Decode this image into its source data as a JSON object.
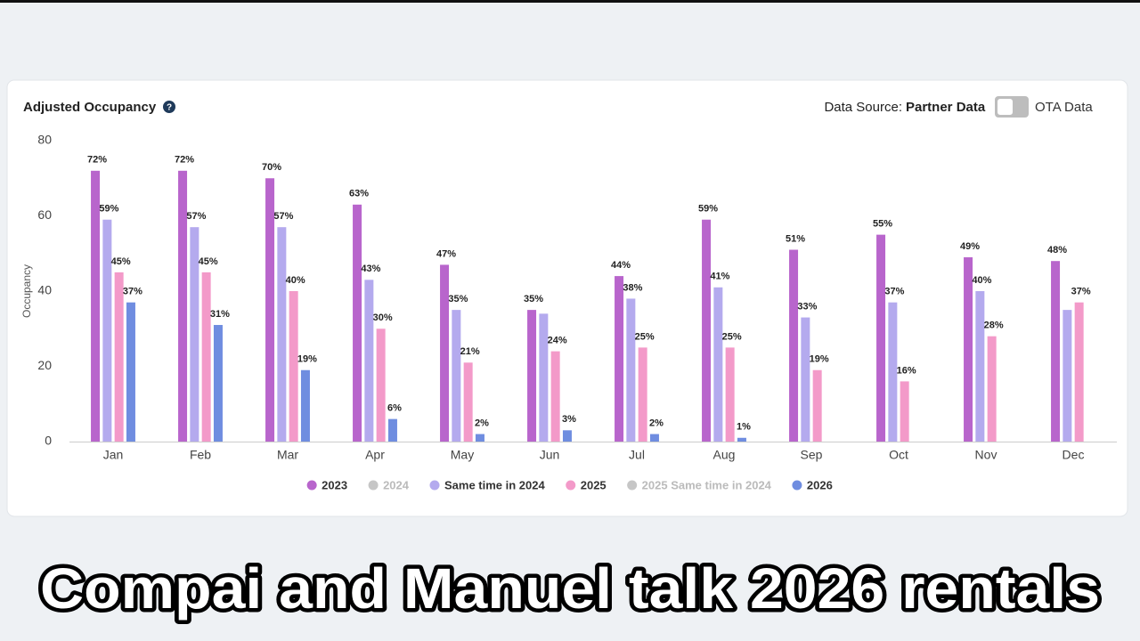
{
  "chart_data": {
    "type": "bar",
    "title": "Adjusted Occupancy",
    "y_label": "Occupancy",
    "categories": [
      "Jan",
      "Feb",
      "Mar",
      "Apr",
      "May",
      "Jun",
      "Jul",
      "Aug",
      "Sep",
      "Oct",
      "Nov",
      "Dec"
    ],
    "ylim": [
      0,
      80
    ],
    "yticks": [
      0,
      20,
      40,
      60,
      80
    ],
    "grid": false,
    "legend": "bottom",
    "series": [
      {
        "name": "2023",
        "color": "#b865cc",
        "hidden": false,
        "values": [
          72,
          72,
          70,
          63,
          47,
          35,
          44,
          59,
          51,
          55,
          49,
          48
        ],
        "value_labels": [
          "72%",
          "72%",
          "70%",
          "63%",
          "47%",
          "35%",
          "44%",
          "59%",
          "51%",
          "55%",
          "49%",
          "48%"
        ]
      },
      {
        "name": "2024",
        "color": "#c6c6c6",
        "hidden": true,
        "values": [
          null,
          null,
          null,
          null,
          null,
          null,
          null,
          null,
          null,
          null,
          null,
          null
        ]
      },
      {
        "name": "Same time in 2024",
        "color": "#b4aaee",
        "hidden": false,
        "values": [
          59,
          57,
          57,
          43,
          35,
          34,
          38,
          41,
          33,
          37,
          40,
          35
        ],
        "value_labels": [
          "59%",
          "57%",
          "57%",
          "43%",
          "35%",
          null,
          "38%",
          "41%",
          "33%",
          "37%",
          "40%",
          null
        ]
      },
      {
        "name": "2025",
        "color": "#f39ac9",
        "hidden": false,
        "values": [
          45,
          45,
          40,
          30,
          21,
          24,
          25,
          25,
          19,
          16,
          28,
          37
        ],
        "value_labels": [
          "45%",
          "45%",
          "40%",
          "30%",
          "21%",
          "24%",
          "25%",
          "25%",
          "19%",
          "16%",
          "28%",
          "37%"
        ]
      },
      {
        "name": "2025 Same time in 2024",
        "color": "#c6c6c6",
        "hidden": true,
        "values": [
          null,
          null,
          null,
          null,
          null,
          null,
          null,
          null,
          null,
          null,
          null,
          null
        ]
      },
      {
        "name": "2026",
        "color": "#6f8de0",
        "hidden": false,
        "values": [
          37,
          31,
          19,
          6,
          2,
          3,
          2,
          1,
          null,
          null,
          null,
          null
        ],
        "value_labels": [
          "37%",
          "31%",
          "19%",
          "6%",
          "2%",
          "3%",
          "2%",
          "1%",
          null,
          null,
          null,
          null
        ]
      }
    ]
  },
  "header": {
    "data_source_label": "Data Source:",
    "selected_source": "Partner Data",
    "other_source": "OTA Data"
  },
  "caption": "Compai and Manuel talk 2026 rentals"
}
